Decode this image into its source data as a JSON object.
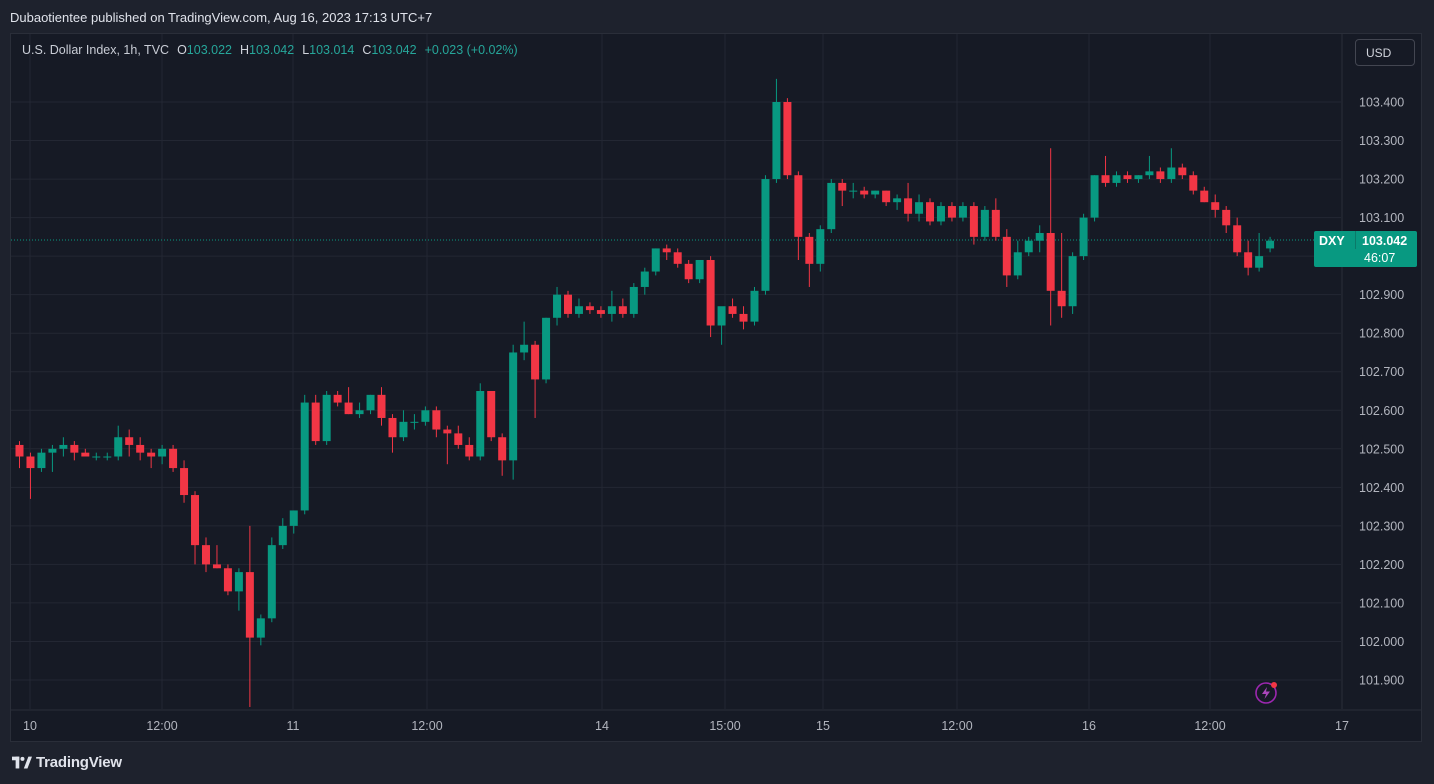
{
  "header": {
    "published": "Dubaotientee published on TradingView.com, Aug 16, 2023 17:13 UTC+7"
  },
  "legend": {
    "symbol": "U.S. Dollar Index, 1h, TVC",
    "open_label": "O",
    "open": "103.022",
    "high_label": "H",
    "high": "103.042",
    "low_label": "L",
    "low": "103.014",
    "close_label": "C",
    "close": "103.042",
    "change": "+0.023 (+0.02%)"
  },
  "currency_button": "USD",
  "price_tag": {
    "symbol": "DXY",
    "price": "103.042",
    "countdown": "46:07"
  },
  "footer": {
    "brand": "TradingView"
  },
  "colors": {
    "up": "#089981",
    "down": "#f23645",
    "background": "#161a25",
    "grid": "#232733"
  },
  "chart_data": {
    "type": "candlestick",
    "title": "U.S. Dollar Index, 1h, TVC",
    "ylim": [
      101.83,
      103.53
    ],
    "last_price": 103.042,
    "y_ticks": [
      "103.400",
      "103.300",
      "103.200",
      "103.100",
      "102.900",
      "102.800",
      "102.700",
      "102.600",
      "102.500",
      "102.400",
      "102.300",
      "102.200",
      "102.100",
      "102.000",
      "101.900"
    ],
    "x_ticks": [
      "10",
      "12:00",
      "11",
      "12:00",
      "14",
      "15:00",
      "15",
      "12:00",
      "16",
      "12:00",
      "17"
    ],
    "candles": [
      [
        102.51,
        102.52,
        102.45,
        102.48
      ],
      [
        102.48,
        102.49,
        102.37,
        102.45
      ],
      [
        102.45,
        102.5,
        102.44,
        102.49
      ],
      [
        102.49,
        102.51,
        102.44,
        102.5
      ],
      [
        102.5,
        102.53,
        102.48,
        102.51
      ],
      [
        102.51,
        102.52,
        102.47,
        102.49
      ],
      [
        102.49,
        102.5,
        102.48,
        102.48
      ],
      [
        102.48,
        102.49,
        102.47,
        102.48
      ],
      [
        102.48,
        102.49,
        102.47,
        102.48
      ],
      [
        102.48,
        102.56,
        102.47,
        102.53
      ],
      [
        102.53,
        102.55,
        102.48,
        102.51
      ],
      [
        102.51,
        102.53,
        102.47,
        102.49
      ],
      [
        102.49,
        102.5,
        102.45,
        102.48
      ],
      [
        102.48,
        102.51,
        102.46,
        102.5
      ],
      [
        102.5,
        102.51,
        102.44,
        102.45
      ],
      [
        102.45,
        102.47,
        102.36,
        102.38
      ],
      [
        102.38,
        102.39,
        102.2,
        102.25
      ],
      [
        102.25,
        102.27,
        102.18,
        102.2
      ],
      [
        102.2,
        102.25,
        102.19,
        102.19
      ],
      [
        102.19,
        102.2,
        102.12,
        102.13
      ],
      [
        102.13,
        102.19,
        102.08,
        102.18
      ],
      [
        102.18,
        102.3,
        101.83,
        102.01
      ],
      [
        102.01,
        102.07,
        101.99,
        102.06
      ],
      [
        102.06,
        102.27,
        102.05,
        102.25
      ],
      [
        102.25,
        102.32,
        102.24,
        102.3
      ],
      [
        102.3,
        102.34,
        102.28,
        102.34
      ],
      [
        102.34,
        102.64,
        102.33,
        102.62
      ],
      [
        102.62,
        102.64,
        102.51,
        102.52
      ],
      [
        102.52,
        102.65,
        102.51,
        102.64
      ],
      [
        102.64,
        102.65,
        102.61,
        102.62
      ],
      [
        102.62,
        102.66,
        102.59,
        102.59
      ],
      [
        102.59,
        102.62,
        102.58,
        102.6
      ],
      [
        102.6,
        102.64,
        102.59,
        102.64
      ],
      [
        102.64,
        102.66,
        102.56,
        102.58
      ],
      [
        102.58,
        102.59,
        102.49,
        102.53
      ],
      [
        102.53,
        102.6,
        102.52,
        102.57
      ],
      [
        102.57,
        102.59,
        102.55,
        102.57
      ],
      [
        102.57,
        102.61,
        102.56,
        102.6
      ],
      [
        102.6,
        102.61,
        102.53,
        102.55
      ],
      [
        102.55,
        102.56,
        102.46,
        102.54
      ],
      [
        102.54,
        102.56,
        102.5,
        102.51
      ],
      [
        102.51,
        102.53,
        102.47,
        102.48
      ],
      [
        102.48,
        102.67,
        102.47,
        102.65
      ],
      [
        102.65,
        102.65,
        102.52,
        102.53
      ],
      [
        102.53,
        102.54,
        102.43,
        102.47
      ],
      [
        102.47,
        102.77,
        102.42,
        102.75
      ],
      [
        102.75,
        102.83,
        102.73,
        102.77
      ],
      [
        102.77,
        102.78,
        102.58,
        102.68
      ],
      [
        102.68,
        102.84,
        102.67,
        102.84
      ],
      [
        102.84,
        102.92,
        102.82,
        102.9
      ],
      [
        102.9,
        102.91,
        102.84,
        102.85
      ],
      [
        102.85,
        102.89,
        102.84,
        102.87
      ],
      [
        102.87,
        102.88,
        102.85,
        102.86
      ],
      [
        102.86,
        102.87,
        102.84,
        102.85
      ],
      [
        102.85,
        102.91,
        102.83,
        102.87
      ],
      [
        102.87,
        102.89,
        102.84,
        102.85
      ],
      [
        102.85,
        102.93,
        102.84,
        102.92
      ],
      [
        102.92,
        102.97,
        102.9,
        102.96
      ],
      [
        102.96,
        103.02,
        102.95,
        103.02
      ],
      [
        103.02,
        103.03,
        102.99,
        103.01
      ],
      [
        103.01,
        103.02,
        102.97,
        102.98
      ],
      [
        102.98,
        102.99,
        102.93,
        102.94
      ],
      [
        102.94,
        102.99,
        102.93,
        102.99
      ],
      [
        102.99,
        103.0,
        102.79,
        102.82
      ],
      [
        102.82,
        102.86,
        102.77,
        102.87
      ],
      [
        102.87,
        102.89,
        102.84,
        102.85
      ],
      [
        102.85,
        102.87,
        102.81,
        102.83
      ],
      [
        102.83,
        102.92,
        102.82,
        102.91
      ],
      [
        102.91,
        103.21,
        102.9,
        103.2
      ],
      [
        103.2,
        103.46,
        103.19,
        103.4
      ],
      [
        103.4,
        103.41,
        103.2,
        103.21
      ],
      [
        103.21,
        103.22,
        102.99,
        103.05
      ],
      [
        103.05,
        103.06,
        102.92,
        102.98
      ],
      [
        102.98,
        103.08,
        102.96,
        103.07
      ],
      [
        103.07,
        103.2,
        103.06,
        103.19
      ],
      [
        103.19,
        103.2,
        103.13,
        103.17
      ],
      [
        103.17,
        103.19,
        103.15,
        103.17
      ],
      [
        103.17,
        103.18,
        103.15,
        103.16
      ],
      [
        103.16,
        103.17,
        103.15,
        103.17
      ],
      [
        103.17,
        103.17,
        103.13,
        103.14
      ],
      [
        103.14,
        103.16,
        103.12,
        103.15
      ],
      [
        103.15,
        103.19,
        103.09,
        103.11
      ],
      [
        103.11,
        103.16,
        103.09,
        103.14
      ],
      [
        103.14,
        103.15,
        103.08,
        103.09
      ],
      [
        103.09,
        103.14,
        103.08,
        103.13
      ],
      [
        103.13,
        103.14,
        103.09,
        103.1
      ],
      [
        103.1,
        103.14,
        103.09,
        103.13
      ],
      [
        103.13,
        103.14,
        103.03,
        103.05
      ],
      [
        103.05,
        103.13,
        103.04,
        103.12
      ],
      [
        103.12,
        103.15,
        103.04,
        103.05
      ],
      [
        103.05,
        103.07,
        102.92,
        102.95
      ],
      [
        102.95,
        103.04,
        102.94,
        103.01
      ],
      [
        103.01,
        103.05,
        103.0,
        103.04
      ],
      [
        103.04,
        103.08,
        103.01,
        103.06
      ],
      [
        103.06,
        103.28,
        102.82,
        102.91
      ],
      [
        102.91,
        103.06,
        102.84,
        102.87
      ],
      [
        102.87,
        103.01,
        102.85,
        103.0
      ],
      [
        103.0,
        103.11,
        102.99,
        103.1
      ],
      [
        103.1,
        103.21,
        103.09,
        103.21
      ],
      [
        103.21,
        103.26,
        103.18,
        103.19
      ],
      [
        103.19,
        103.22,
        103.18,
        103.21
      ],
      [
        103.21,
        103.22,
        103.19,
        103.2
      ],
      [
        103.2,
        103.21,
        103.19,
        103.21
      ],
      [
        103.21,
        103.26,
        103.2,
        103.22
      ],
      [
        103.22,
        103.23,
        103.19,
        103.2
      ],
      [
        103.2,
        103.28,
        103.19,
        103.23
      ],
      [
        103.23,
        103.24,
        103.2,
        103.21
      ],
      [
        103.21,
        103.22,
        103.16,
        103.17
      ],
      [
        103.17,
        103.18,
        103.14,
        103.14
      ],
      [
        103.14,
        103.16,
        103.1,
        103.12
      ],
      [
        103.12,
        103.13,
        103.06,
        103.08
      ],
      [
        103.08,
        103.1,
        103.0,
        103.01
      ],
      [
        103.01,
        103.04,
        102.95,
        102.97
      ],
      [
        102.97,
        103.06,
        102.96,
        103.0
      ],
      [
        103.02,
        103.05,
        103.01,
        103.04
      ]
    ]
  }
}
